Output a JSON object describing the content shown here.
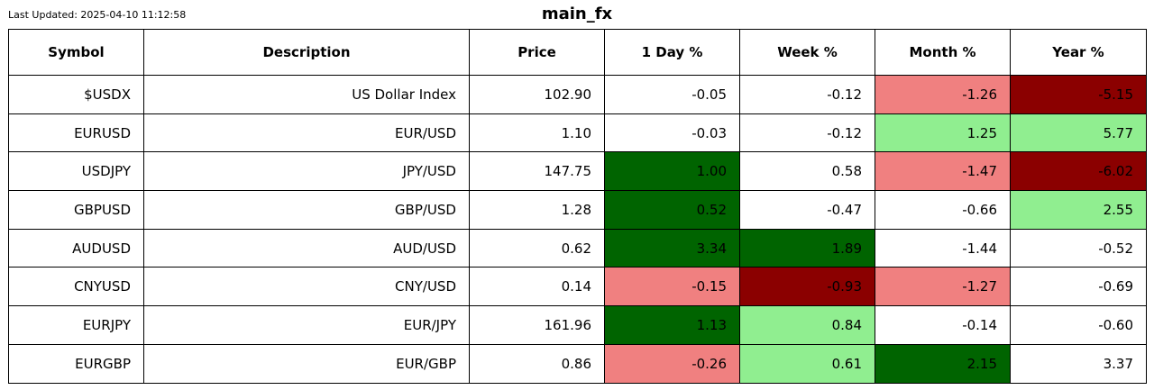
{
  "header": {
    "last_updated": "Last Updated: 2025-04-10 11:12:58",
    "title": "main_fx"
  },
  "colors": {
    "strong_up": "#006400",
    "up": "#90ee90",
    "down": "#f08080",
    "strong_down": "#8b0000",
    "neutral": "#ffffff"
  },
  "chart_data": {
    "type": "table",
    "title": "main_fx",
    "columns": [
      "Symbol",
      "Description",
      "Price",
      "1 Day %",
      "Week %",
      "Month %",
      "Year %"
    ],
    "rows": [
      {
        "symbol": "$USDX",
        "description": "US Dollar Index",
        "price": "102.90",
        "values": [
          "-0.05",
          "-0.12",
          "-1.26",
          "-5.15"
        ],
        "shades": [
          "neutral",
          "neutral",
          "down",
          "strong_down"
        ]
      },
      {
        "symbol": "EURUSD",
        "description": "EUR/USD",
        "price": "1.10",
        "values": [
          "-0.03",
          "-0.12",
          "1.25",
          "5.77"
        ],
        "shades": [
          "neutral",
          "neutral",
          "up",
          "up"
        ]
      },
      {
        "symbol": "USDJPY",
        "description": "JPY/USD",
        "price": "147.75",
        "values": [
          "1.00",
          "0.58",
          "-1.47",
          "-6.02"
        ],
        "shades": [
          "strong_up",
          "neutral",
          "down",
          "strong_down"
        ]
      },
      {
        "symbol": "GBPUSD",
        "description": "GBP/USD",
        "price": "1.28",
        "values": [
          "0.52",
          "-0.47",
          "-0.66",
          "2.55"
        ],
        "shades": [
          "strong_up",
          "neutral",
          "neutral",
          "up"
        ]
      },
      {
        "symbol": "AUDUSD",
        "description": "AUD/USD",
        "price": "0.62",
        "values": [
          "3.34",
          "1.89",
          "-1.44",
          "-0.52"
        ],
        "shades": [
          "strong_up",
          "strong_up",
          "neutral",
          "neutral"
        ]
      },
      {
        "symbol": "CNYUSD",
        "description": "CNY/USD",
        "price": "0.14",
        "values": [
          "-0.15",
          "-0.93",
          "-1.27",
          "-0.69"
        ],
        "shades": [
          "down",
          "strong_down",
          "down",
          "neutral"
        ]
      },
      {
        "symbol": "EURJPY",
        "description": "EUR/JPY",
        "price": "161.96",
        "values": [
          "1.13",
          "0.84",
          "-0.14",
          "-0.60"
        ],
        "shades": [
          "strong_up",
          "up",
          "neutral",
          "neutral"
        ]
      },
      {
        "symbol": "EURGBP",
        "description": "EUR/GBP",
        "price": "0.86",
        "values": [
          "-0.26",
          "0.61",
          "2.15",
          "3.37"
        ],
        "shades": [
          "down",
          "up",
          "strong_up",
          "neutral"
        ]
      }
    ]
  }
}
